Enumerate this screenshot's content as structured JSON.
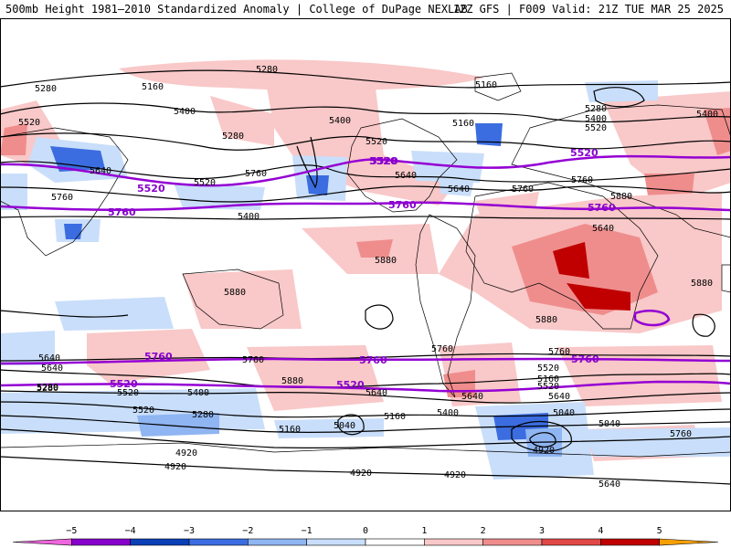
{
  "header": {
    "title_left": "500mb Height 1981–2010 Standardized Anomaly | College of DuPage NEXLAB",
    "title_right": "12Z GFS | F009 Valid: 21Z TUE MAR 25 2025"
  },
  "colorbar": {
    "ticks": [
      "−5",
      "−4",
      "−3",
      "−2",
      "−1",
      "0",
      "1",
      "2",
      "3",
      "4",
      "5"
    ],
    "colors": [
      "#ee66dd",
      "#8800cc",
      "#0a3fb8",
      "#3b6de0",
      "#8fb5f2",
      "#c9defa",
      "#ffffff",
      "#f9c8c8",
      "#ef8d8d",
      "#e04848",
      "#c00000",
      "#f5a000"
    ]
  },
  "contour_labels": {
    "black": [
      "5280",
      "5160",
      "5280",
      "5520",
      "5400",
      "5280",
      "5400",
      "5520",
      "5160",
      "5280",
      "5400",
      "5520",
      "5160",
      "5400",
      "5640",
      "5520",
      "5760",
      "5640",
      "5760",
      "5400",
      "5640",
      "5760",
      "5880",
      "5760",
      "5640",
      "5880",
      "5880",
      "5880",
      "5880",
      "5760",
      "5640",
      "5760",
      "5760",
      "5640",
      "5880",
      "5640",
      "5280",
      "5520",
      "5400",
      "5640",
      "5520",
      "5160",
      "5520",
      "5640",
      "5400",
      "5520",
      "5280",
      "5160",
      "5040",
      "5160",
      "5040",
      "5280",
      "5040",
      "4920",
      "4920",
      "4920",
      "4920",
      "4920",
      "5760",
      "5640"
    ],
    "purple": [
      "5520",
      "5760",
      "5520",
      "5520",
      "5760",
      "5760",
      "5520",
      "5760",
      "5520",
      "5760",
      "5520",
      "5760"
    ]
  }
}
